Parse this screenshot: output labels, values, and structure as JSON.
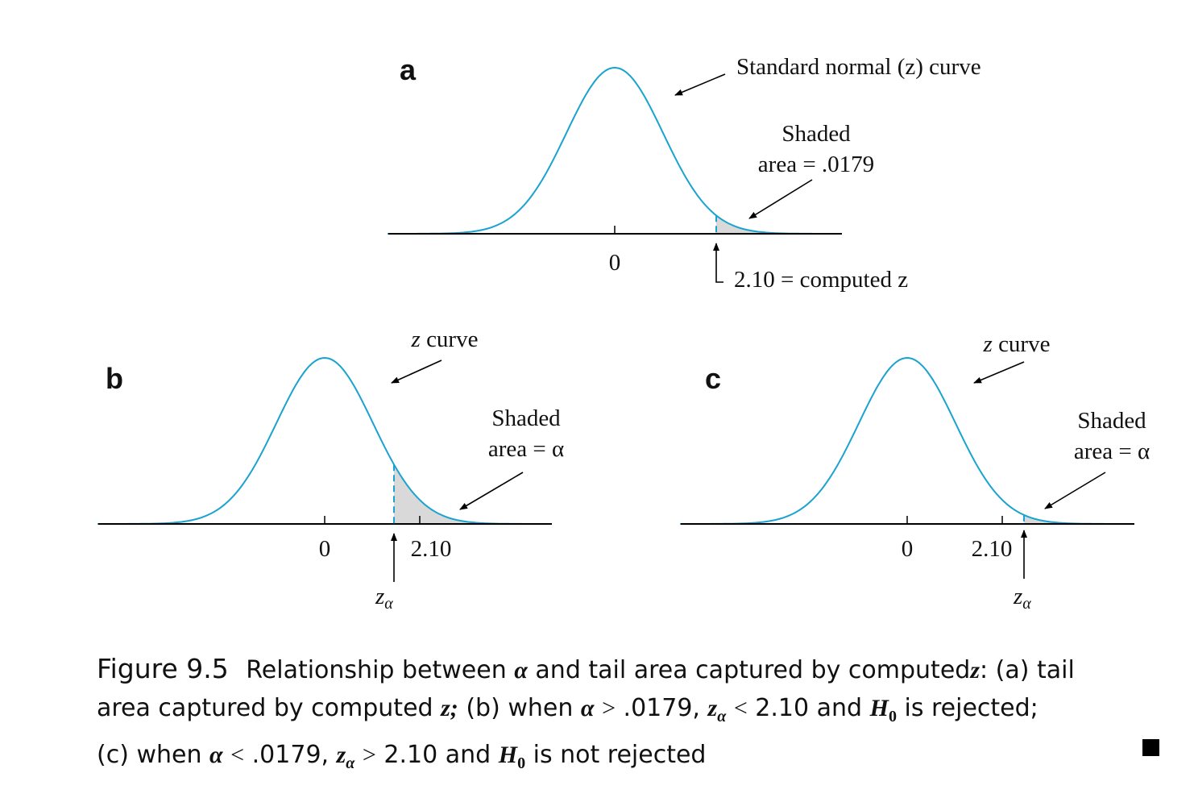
{
  "panels": {
    "a": {
      "letter": "a",
      "curve_label": "Standard normal (z) curve",
      "shaded_line1": "Shaded",
      "shaded_line2": "area = .0179",
      "zero_label": "0",
      "computed_label": "2.10 = computed z",
      "tail_area": 0.0179,
      "computed_z": 2.1
    },
    "b": {
      "letter": "b",
      "curve_label": "z curve",
      "shaded_line1": "Shaded",
      "shaded_line2": "area = α",
      "zero_label": "0",
      "tick_label": "2.10",
      "z_alpha_label": "z",
      "z_alpha_sub": "α"
    },
    "c": {
      "letter": "c",
      "curve_label": "z curve",
      "shaded_line1": "Shaded",
      "shaded_line2": "area = α",
      "zero_label": "0",
      "tick_label": "2.10",
      "z_alpha_label": "z",
      "z_alpha_sub": "α"
    }
  },
  "caption": {
    "figure_number": "Figure 9.5",
    "line1_a": "Relationship between",
    "line1_b": "and tail area captured by computed",
    "line1_c": ": (a) tail",
    "line2_a": "area captured by computed",
    "line2_b": "(b) when",
    "line2_c": ".0179,",
    "line2_d": "2.10 and",
    "line2_e": "is rejected;",
    "line3_a": "(c) when",
    "line3_b": ".0179,",
    "line3_c": "2.10 and",
    "line3_d": "is not rejected",
    "alpha": "α",
    "z": "z",
    "z_semicolon": "z;",
    "H": "H",
    "H_sub": "0",
    "gt": ">",
    "lt": "<"
  },
  "colors": {
    "curve": "#1aa3d0",
    "shade": "#d9d9d9"
  }
}
